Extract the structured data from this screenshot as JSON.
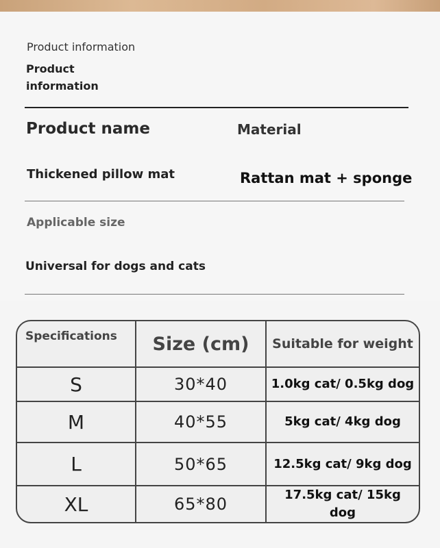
{
  "header": {
    "small_title": "Product information",
    "bold_title": "Product information"
  },
  "info": {
    "product_name_label": "Product name",
    "material_label": "Material",
    "product_name_value": "Thickened pillow mat",
    "material_value": "Rattan mat + sponge",
    "applicable_size_label": "Applicable size",
    "applicable_size_value": "Universal for dogs and cats"
  },
  "spec_table": {
    "headers": [
      "Specifications",
      "Size (cm)",
      "Suitable for weight"
    ],
    "rows": [
      {
        "spec": "S",
        "size": "30*40",
        "weight": "1.0kg cat/ 0.5kg dog"
      },
      {
        "spec": "M",
        "size": "40*55",
        "weight": "5kg cat/ 4kg dog"
      },
      {
        "spec": "L",
        "size": "50*65",
        "weight": "12.5kg cat/ 9kg dog"
      },
      {
        "spec": "XL",
        "size": "65*80",
        "weight": "17.5kg cat/ 15kg dog"
      }
    ]
  }
}
